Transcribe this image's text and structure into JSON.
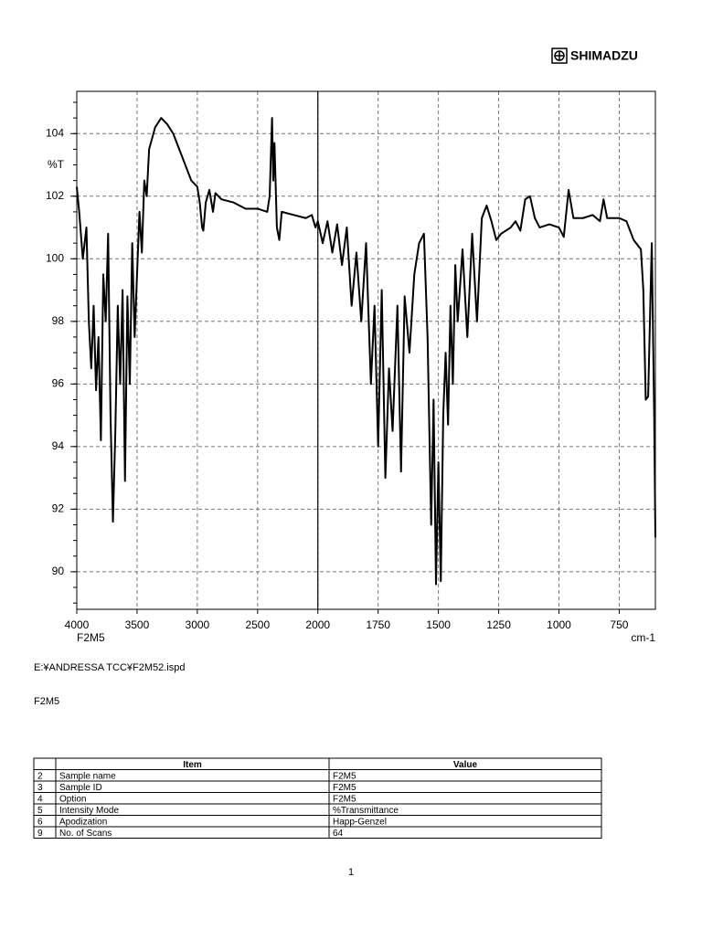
{
  "header": {
    "logo": "SHIMADZU"
  },
  "chart_data": {
    "type": "line",
    "y_label": "%T",
    "x_label": "cm-1",
    "sample": "F2M5",
    "xlim": [
      4000,
      600
    ],
    "xbreak": 2000,
    "ylim": [
      88.8,
      105.35
    ],
    "xticks": [
      4000,
      3500,
      3000,
      2500,
      2000,
      1750,
      1500,
      1250,
      1000,
      750
    ],
    "yticks": [
      90,
      92,
      94,
      96,
      98,
      100,
      102,
      104
    ],
    "grid": true,
    "color": "#000000",
    "x": [
      4000,
      3980,
      3950,
      3920,
      3900,
      3880,
      3860,
      3840,
      3820,
      3800,
      3780,
      3760,
      3740,
      3720,
      3700,
      3680,
      3660,
      3640,
      3620,
      3600,
      3580,
      3560,
      3540,
      3520,
      3500,
      3480,
      3460,
      3440,
      3420,
      3400,
      3350,
      3300,
      3250,
      3200,
      3150,
      3100,
      3050,
      3000,
      2980,
      2960,
      2950,
      2930,
      2900,
      2870,
      2850,
      2800,
      2700,
      2600,
      2500,
      2420,
      2400,
      2380,
      2370,
      2360,
      2340,
      2320,
      2300,
      2200,
      2100,
      2050,
      2020,
      2000,
      1980,
      1960,
      1940,
      1920,
      1900,
      1880,
      1860,
      1840,
      1820,
      1800,
      1780,
      1765,
      1750,
      1735,
      1720,
      1705,
      1690,
      1670,
      1655,
      1640,
      1620,
      1600,
      1580,
      1560,
      1545,
      1530,
      1520,
      1510,
      1500,
      1490,
      1480,
      1470,
      1460,
      1450,
      1440,
      1430,
      1420,
      1400,
      1380,
      1360,
      1340,
      1320,
      1300,
      1280,
      1260,
      1240,
      1200,
      1180,
      1160,
      1140,
      1120,
      1100,
      1080,
      1040,
      1000,
      980,
      960,
      940,
      900,
      860,
      830,
      815,
      800,
      770,
      750,
      720,
      690,
      660,
      650,
      640,
      630,
      615,
      605,
      600
    ],
    "values": [
      102.3,
      101.5,
      100.0,
      101.0,
      98.0,
      96.5,
      98.5,
      95.8,
      97.5,
      94.2,
      99.5,
      98.0,
      100.8,
      95.0,
      91.6,
      94.5,
      98.5,
      96.0,
      99.0,
      92.9,
      98.8,
      96.0,
      100.5,
      97.5,
      99.5,
      101.5,
      100.2,
      102.5,
      102.0,
      103.5,
      104.2,
      104.5,
      104.3,
      104.0,
      103.5,
      103.0,
      102.5,
      102.3,
      101.8,
      101.0,
      100.9,
      101.8,
      102.2,
      101.5,
      102.1,
      101.9,
      101.8,
      101.6,
      101.6,
      101.5,
      102.0,
      104.5,
      102.5,
      103.7,
      101.0,
      100.6,
      101.5,
      101.4,
      101.3,
      101.4,
      101.0,
      101.2,
      100.5,
      101.2,
      100.2,
      101.1,
      99.8,
      101.0,
      98.5,
      100.2,
      98.0,
      100.5,
      96.0,
      98.5,
      94.0,
      99.0,
      93.0,
      96.5,
      94.5,
      98.5,
      93.2,
      98.8,
      97.0,
      99.5,
      100.5,
      100.8,
      97.5,
      91.5,
      95.5,
      89.6,
      93.5,
      89.7,
      95.0,
      97.0,
      94.7,
      98.5,
      96.0,
      99.8,
      98.0,
      100.3,
      97.5,
      100.8,
      98.0,
      101.3,
      101.7,
      101.2,
      100.6,
      100.8,
      101.0,
      101.2,
      100.9,
      101.9,
      102.0,
      101.3,
      101.0,
      101.1,
      101.0,
      100.7,
      102.2,
      101.3,
      101.3,
      101.4,
      101.2,
      101.9,
      101.3,
      101.3,
      101.3,
      101.2,
      100.6,
      100.3,
      99.0,
      95.5,
      95.6,
      100.5,
      95.0,
      91.1
    ]
  },
  "file_path": "E:¥ANDRESSA TCC¥F2M52.ispd",
  "sample_label": "F2M5",
  "table": {
    "columns": [
      "Item",
      "Value"
    ],
    "rows": [
      [
        "2",
        "Sample name",
        "F2M5"
      ],
      [
        "3",
        "Sample ID",
        "F2M5"
      ],
      [
        "4",
        "Option",
        "F2M5"
      ],
      [
        "5",
        "Intensity Mode",
        "%Transmittance"
      ],
      [
        "6",
        "Apodization",
        "Happ-Genzel"
      ],
      [
        "9",
        "No. of Scans",
        "64"
      ]
    ]
  },
  "page_number": "1"
}
